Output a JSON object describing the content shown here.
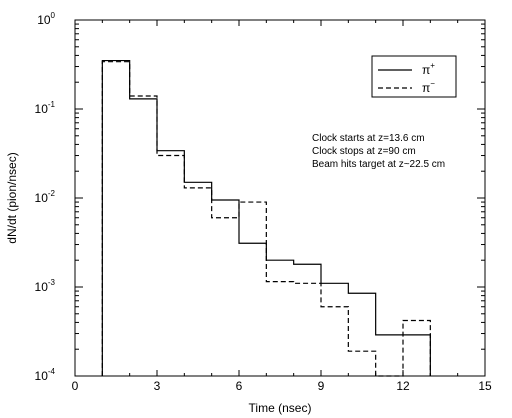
{
  "chart_data": {
    "type": "line",
    "xlabel": "Time (nsec)",
    "ylabel": "dN/dt (pion/nsec)",
    "xlim": [
      0,
      15
    ],
    "ylim": [
      0.0001,
      1
    ],
    "yscale": "log",
    "x_ticks": [
      "0",
      "3",
      "6",
      "9",
      "12",
      "15"
    ],
    "y_ticks": [
      {
        "base": "10",
        "exp": "-4"
      },
      {
        "base": "10",
        "exp": "-3"
      },
      {
        "base": "10",
        "exp": "-2"
      },
      {
        "base": "10",
        "exp": "-1"
      },
      {
        "base": "10",
        "exp": "0"
      }
    ],
    "bin_edges": [
      1,
      2,
      3,
      4,
      5,
      6,
      7,
      8,
      9,
      10,
      11,
      12,
      13
    ],
    "series": [
      {
        "label_base": "π",
        "label_sup": "+",
        "style": "solid",
        "values": [
          0.35,
          0.13,
          0.034,
          0.015,
          0.0095,
          0.0031,
          0.002,
          0.0018,
          0.0011,
          0.00085,
          0.00029,
          0.00029
        ]
      },
      {
        "label_base": "π",
        "label_sup": "−",
        "style": "dashed",
        "values": [
          0.34,
          0.14,
          0.03,
          0.013,
          0.006,
          0.009,
          0.00115,
          0.0011,
          0.0006,
          0.00019,
          0.0001,
          0.00042
        ]
      }
    ],
    "annotations": [
      "Clock starts at z=13.6 cm",
      "Clock stops at z=90 cm",
      "Beam hits target at z~22.5 cm"
    ],
    "legend_position": "top-right"
  }
}
